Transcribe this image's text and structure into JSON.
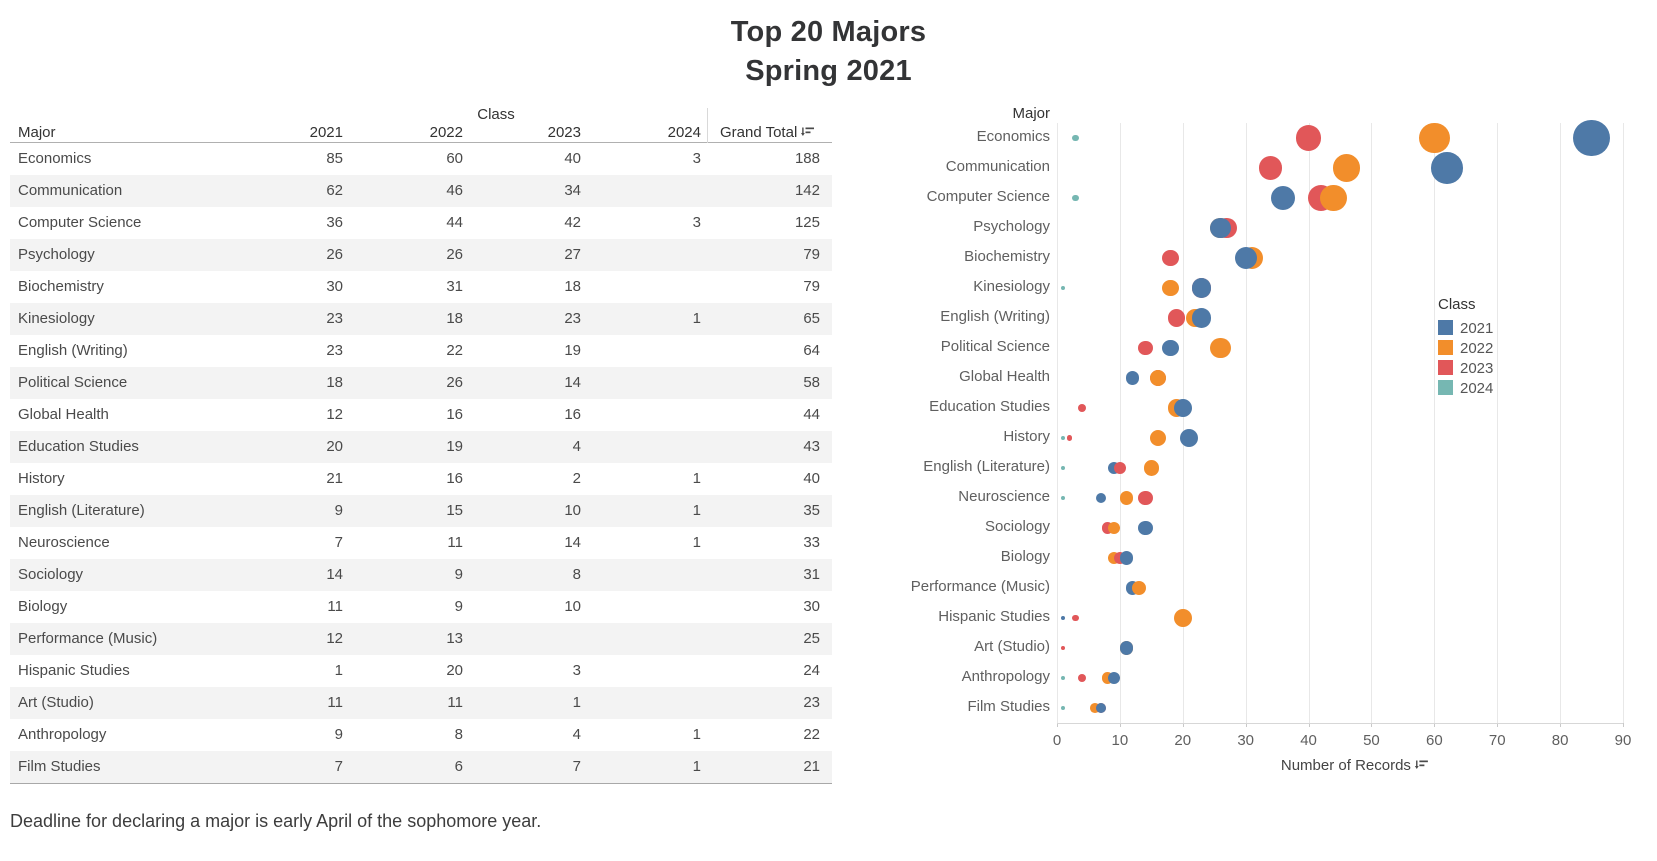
{
  "title": {
    "line1": "Top 20 Majors",
    "line2": "Spring 2021"
  },
  "caption": "Deadline for declaring a major is early April of the sophomore year.",
  "table": {
    "group_header": "Class",
    "columns": [
      "Major",
      "2021",
      "2022",
      "2023",
      "2024",
      "Grand Total"
    ],
    "sort_icon": "sort-descending-icon",
    "rows": [
      {
        "major": "Economics",
        "values": [
          "85",
          "60",
          "40",
          "3"
        ],
        "total": "188"
      },
      {
        "major": "Communication",
        "values": [
          "62",
          "46",
          "34",
          ""
        ],
        "total": "142"
      },
      {
        "major": "Computer Science",
        "values": [
          "36",
          "44",
          "42",
          "3"
        ],
        "total": "125"
      },
      {
        "major": "Psychology",
        "values": [
          "26",
          "26",
          "27",
          ""
        ],
        "total": "79"
      },
      {
        "major": "Biochemistry",
        "values": [
          "30",
          "31",
          "18",
          ""
        ],
        "total": "79"
      },
      {
        "major": "Kinesiology",
        "values": [
          "23",
          "18",
          "23",
          "1"
        ],
        "total": "65"
      },
      {
        "major": "English (Writing)",
        "values": [
          "23",
          "22",
          "19",
          ""
        ],
        "total": "64"
      },
      {
        "major": "Political Science",
        "values": [
          "18",
          "26",
          "14",
          ""
        ],
        "total": "58"
      },
      {
        "major": "Global Health",
        "values": [
          "12",
          "16",
          "16",
          ""
        ],
        "total": "44"
      },
      {
        "major": "Education Studies",
        "values": [
          "20",
          "19",
          "4",
          ""
        ],
        "total": "43"
      },
      {
        "major": "History",
        "values": [
          "21",
          "16",
          "2",
          "1"
        ],
        "total": "40"
      },
      {
        "major": "English (Literature)",
        "values": [
          "9",
          "15",
          "10",
          "1"
        ],
        "total": "35"
      },
      {
        "major": "Neuroscience",
        "values": [
          "7",
          "11",
          "14",
          "1"
        ],
        "total": "33"
      },
      {
        "major": "Sociology",
        "values": [
          "14",
          "9",
          "8",
          ""
        ],
        "total": "31"
      },
      {
        "major": "Biology",
        "values": [
          "11",
          "9",
          "10",
          ""
        ],
        "total": "30"
      },
      {
        "major": "Performance (Music)",
        "values": [
          "12",
          "13",
          "",
          ""
        ],
        "total": "25"
      },
      {
        "major": "Hispanic Studies",
        "values": [
          "1",
          "20",
          "3",
          ""
        ],
        "total": "24"
      },
      {
        "major": "Art (Studio)",
        "values": [
          "11",
          "11",
          "1",
          ""
        ],
        "total": "23"
      },
      {
        "major": "Anthropology",
        "values": [
          "9",
          "8",
          "4",
          "1"
        ],
        "total": "22"
      },
      {
        "major": "Film Studies",
        "values": [
          "7",
          "6",
          "7",
          "1"
        ],
        "total": "21"
      }
    ]
  },
  "chart_data": {
    "type": "scatter",
    "title": "Major",
    "xlabel": "Number of Records",
    "xlabel_sort_icon": "sort-descending-icon",
    "xlim": [
      0,
      90
    ],
    "xticks": [
      0,
      10,
      20,
      30,
      40,
      50,
      60,
      70,
      80,
      90
    ],
    "grid": true,
    "size_encoding": "bubble area proportional to value",
    "legend": {
      "title": "Class",
      "position": "right-middle",
      "entries": [
        {
          "label": "2021",
          "color": "#4e79a7"
        },
        {
          "label": "2022",
          "color": "#f28e2b"
        },
        {
          "label": "2023",
          "color": "#e15759"
        },
        {
          "label": "2024",
          "color": "#76b7b2"
        }
      ]
    },
    "categories": [
      "Economics",
      "Communication",
      "Computer Science",
      "Psychology",
      "Biochemistry",
      "Kinesiology",
      "English (Writing)",
      "Political Science",
      "Global Health",
      "Education Studies",
      "History",
      "English (Literature)",
      "Neuroscience",
      "Sociology",
      "Biology",
      "Performance (Music)",
      "Hispanic Studies",
      "Art (Studio)",
      "Anthropology",
      "Film Studies"
    ],
    "series": [
      {
        "name": "2021",
        "color": "#4e79a7",
        "values": [
          85,
          62,
          36,
          26,
          30,
          23,
          23,
          18,
          12,
          20,
          21,
          9,
          7,
          14,
          11,
          12,
          1,
          11,
          9,
          7
        ]
      },
      {
        "name": "2022",
        "color": "#f28e2b",
        "values": [
          60,
          46,
          44,
          26,
          31,
          18,
          22,
          26,
          16,
          19,
          16,
          15,
          11,
          9,
          9,
          13,
          20,
          11,
          8,
          6
        ]
      },
      {
        "name": "2023",
        "color": "#e15759",
        "values": [
          40,
          34,
          42,
          27,
          18,
          23,
          19,
          14,
          16,
          4,
          2,
          10,
          14,
          8,
          10,
          null,
          3,
          1,
          4,
          7
        ]
      },
      {
        "name": "2024",
        "color": "#76b7b2",
        "values": [
          3,
          null,
          3,
          null,
          null,
          1,
          null,
          null,
          null,
          null,
          1,
          1,
          1,
          null,
          null,
          null,
          null,
          null,
          1,
          1
        ]
      }
    ],
    "draw_order": [
      [
        "2024",
        "2023",
        "2022",
        "2021"
      ],
      [
        "2023",
        "2022",
        "2021"
      ],
      [
        "2024",
        "2021",
        "2023",
        "2022"
      ],
      [
        "2022",
        "2023",
        "2021"
      ],
      [
        "2023",
        "2022",
        "2021"
      ],
      [
        "2024",
        "2022",
        "2023",
        "2021"
      ],
      [
        "2023",
        "2022",
        "2021"
      ],
      [
        "2023",
        "2021",
        "2022"
      ],
      [
        "2021",
        "2023",
        "2022"
      ],
      [
        "2023",
        "2022",
        "2021"
      ],
      [
        "2024",
        "2023",
        "2022",
        "2021"
      ],
      [
        "2024",
        "2021",
        "2023",
        "2022"
      ],
      [
        "2024",
        "2021",
        "2022",
        "2023"
      ],
      [
        "2023",
        "2022",
        "2021"
      ],
      [
        "2022",
        "2023",
        "2021"
      ],
      [
        "2021",
        "2022"
      ],
      [
        "2021",
        "2023",
        "2022"
      ],
      [
        "2023",
        "2022",
        "2021"
      ],
      [
        "2024",
        "2023",
        "2022",
        "2021"
      ],
      [
        "2024",
        "2022",
        "2023",
        "2021"
      ]
    ]
  }
}
